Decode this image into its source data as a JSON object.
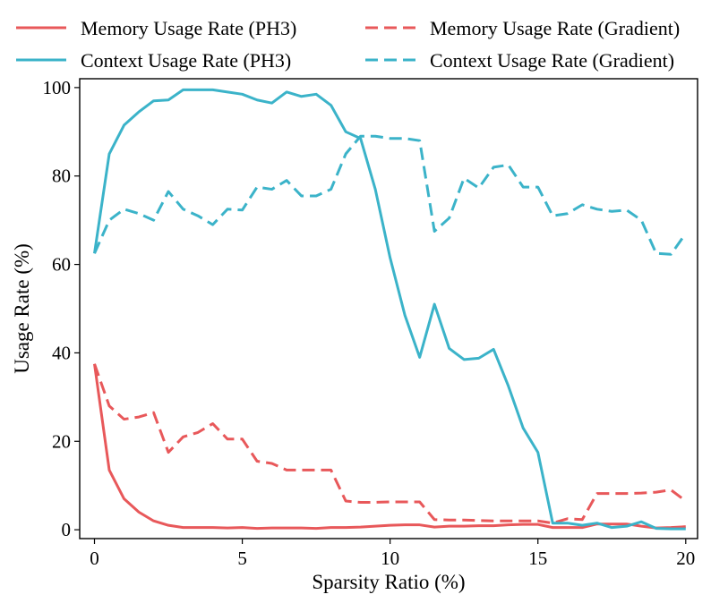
{
  "chart_data": {
    "type": "line",
    "title": "",
    "xlabel": "Sparsity Ratio (%)",
    "ylabel": "Usage Rate (%)",
    "xlim": [
      -0.5,
      20.4
    ],
    "ylim": [
      -2,
      102
    ],
    "xticks": [
      0,
      5,
      10,
      15,
      20
    ],
    "yticks": [
      0,
      20,
      40,
      60,
      80,
      100
    ],
    "grid": false,
    "legend_position": "top, two columns",
    "x": [
      0,
      0.5,
      1,
      1.5,
      2,
      2.5,
      3,
      3.5,
      4,
      4.5,
      5,
      5.5,
      6,
      6.5,
      7,
      7.5,
      8,
      8.5,
      9,
      9.5,
      10,
      10.5,
      11,
      11.5,
      12,
      12.5,
      13,
      13.5,
      14,
      14.5,
      15,
      15.5,
      16,
      16.5,
      17,
      17.5,
      18,
      18.5,
      19,
      19.5,
      20
    ],
    "series": [
      {
        "name": "Memory Usage Rate (PH3)",
        "color": "#E8585A",
        "dash": "solid",
        "values": [
          37.5,
          13.5,
          7,
          4,
          2,
          1,
          0.5,
          0.5,
          0.5,
          0.4,
          0.5,
          0.3,
          0.4,
          0.4,
          0.4,
          0.3,
          0.5,
          0.5,
          0.6,
          0.8,
          1,
          1.1,
          1.1,
          0.6,
          0.8,
          0.8,
          0.9,
          0.9,
          1.1,
          1.2,
          1.2,
          0.5,
          0.5,
          0.5,
          1.3,
          1.3,
          1.3,
          0.8,
          0.4,
          0.5,
          0.7
        ]
      },
      {
        "name": "Memory Usage Rate (Gradient)",
        "color": "#E8585A",
        "dash": "dashed",
        "values": [
          37.5,
          28,
          25,
          25.5,
          26.5,
          17.5,
          21,
          22,
          24,
          20.5,
          20.5,
          15.5,
          15,
          13.5,
          13.5,
          13.5,
          13.5,
          6.5,
          6.2,
          6.2,
          6.3,
          6.3,
          6.3,
          2.3,
          2.2,
          2.2,
          2.1,
          2,
          2,
          2,
          2,
          1.5,
          2.5,
          2.3,
          8.2,
          8.2,
          8.2,
          8.3,
          8.5,
          9,
          6.5
        ]
      },
      {
        "name": "Context Usage Rate (PH3)",
        "color": "#3BB3C9",
        "dash": "solid",
        "values": [
          62.5,
          85,
          91.5,
          94.5,
          97,
          97.2,
          99.5,
          99.5,
          99.5,
          99,
          98.5,
          97.2,
          96.5,
          99,
          98,
          98.5,
          96,
          90,
          88.5,
          77,
          61.5,
          48.5,
          39,
          51,
          41,
          38.5,
          38.8,
          40.8,
          32.5,
          23,
          17.5,
          1.5,
          1.5,
          1,
          1.5,
          0.5,
          0.8,
          1.8,
          0.3,
          0.2,
          0.2
        ]
      },
      {
        "name": "Context Usage Rate (Gradient)",
        "color": "#3BB3C9",
        "dash": "dashed",
        "values": [
          62.5,
          70,
          72.5,
          71.5,
          70,
          76.5,
          72.5,
          71,
          69,
          72.5,
          72.3,
          77.5,
          77,
          79,
          75.5,
          75.5,
          77,
          85,
          89,
          89,
          88.5,
          88.5,
          88,
          67.5,
          70.5,
          79.5,
          77.3,
          82,
          82.5,
          77.5,
          77.5,
          71,
          71.5,
          73.5,
          72.5,
          72,
          72.3,
          70,
          62.5,
          62.3,
          67
        ]
      }
    ]
  }
}
